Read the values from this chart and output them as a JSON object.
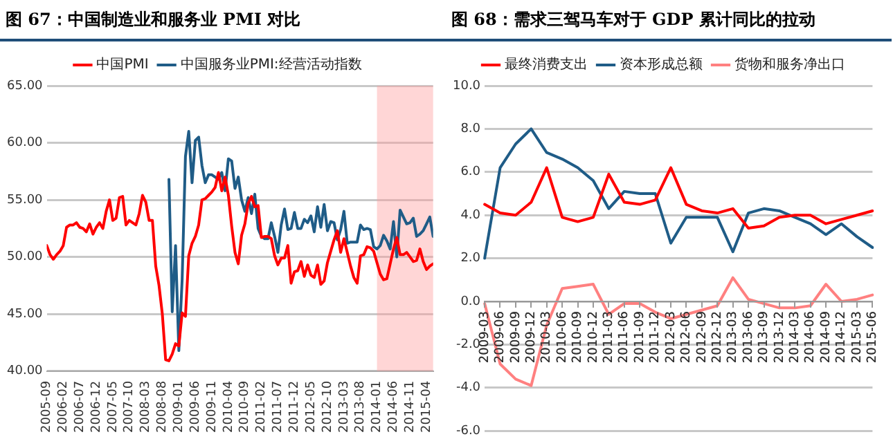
{
  "chart_data": [
    {
      "type": "line",
      "title": "图 67：中国制造业和服务业 PMI 对比",
      "x": [
        "2005-09",
        "2005-10",
        "2005-11",
        "2005-12",
        "2006-01",
        "2006-02",
        "2006-03",
        "2006-04",
        "2006-05",
        "2006-06",
        "2006-07",
        "2006-08",
        "2006-09",
        "2006-10",
        "2006-11",
        "2006-12",
        "2007-01",
        "2007-02",
        "2007-03",
        "2007-04",
        "2007-05",
        "2007-06",
        "2007-07",
        "2007-08",
        "2007-09",
        "2007-10",
        "2007-11",
        "2007-12",
        "2008-01",
        "2008-02",
        "2008-03",
        "2008-04",
        "2008-05",
        "2008-06",
        "2008-07",
        "2008-08",
        "2008-09",
        "2008-10",
        "2008-11",
        "2008-12",
        "2009-01",
        "2009-02",
        "2009-03",
        "2009-04",
        "2009-05",
        "2009-06",
        "2009-07",
        "2009-08",
        "2009-09",
        "2009-10",
        "2009-11",
        "2009-12",
        "2010-01",
        "2010-02",
        "2010-03",
        "2010-04",
        "2010-05",
        "2010-06",
        "2010-07",
        "2010-08",
        "2010-09",
        "2010-10",
        "2010-11",
        "2010-12",
        "2011-01",
        "2011-02",
        "2011-03",
        "2011-04",
        "2011-05",
        "2011-06",
        "2011-07",
        "2011-08",
        "2011-09",
        "2011-10",
        "2011-11",
        "2011-12",
        "2012-01",
        "2012-02",
        "2012-03",
        "2012-04",
        "2012-05",
        "2012-06",
        "2012-07",
        "2012-08",
        "2012-09",
        "2012-10",
        "2012-11",
        "2012-12",
        "2013-01",
        "2013-02",
        "2013-03",
        "2013-04",
        "2013-05",
        "2013-06",
        "2013-07",
        "2013-08",
        "2013-09",
        "2013-10",
        "2013-11",
        "2013-12",
        "2014-01",
        "2014-02",
        "2014-03",
        "2014-04",
        "2014-05",
        "2014-06",
        "2014-07",
        "2014-08",
        "2014-09",
        "2014-10",
        "2014-11",
        "2014-12",
        "2015-01",
        "2015-02",
        "2015-03",
        "2015-04",
        "2015-05",
        "2015-06"
      ],
      "series": [
        {
          "name": "中国PMI",
          "color": "#ff0000",
          "values": [
            51.0,
            50.2,
            49.8,
            50.2,
            50.5,
            51.0,
            52.6,
            52.8,
            52.8,
            53.0,
            52.6,
            52.5,
            52.2,
            52.9,
            52.0,
            52.6,
            53.0,
            52.5,
            54.0,
            55.0,
            53.2,
            53.4,
            55.2,
            55.3,
            52.8,
            53.2,
            53.0,
            52.8,
            53.8,
            55.4,
            54.8,
            53.2,
            53.2,
            49.2,
            47.5,
            45.0,
            41.0,
            40.9,
            41.5,
            42.4,
            42.2,
            45.1,
            44.8,
            50.1,
            51.2,
            51.8,
            52.8,
            55.0,
            55.1,
            55.4,
            55.7,
            56.1,
            57.4,
            55.8,
            57.0,
            55.4,
            52.7,
            50.4,
            49.4,
            51.9,
            52.9,
            54.7,
            55.3,
            54.4,
            54.5,
            51.7,
            51.8,
            51.8,
            51.6,
            50.1,
            49.3,
            49.9,
            49.9,
            51.0,
            47.7,
            48.7,
            48.8,
            49.6,
            48.3,
            49.3,
            48.4,
            48.2,
            49.3,
            47.6,
            47.9,
            49.5,
            50.5,
            51.5,
            52.3,
            50.4,
            51.6,
            50.4,
            49.2,
            48.2,
            47.7,
            50.1,
            50.2,
            50.9,
            50.8,
            50.5,
            49.5,
            48.5,
            48.0,
            48.1,
            49.4,
            50.7,
            51.7,
            50.2,
            50.2,
            50.4,
            50.0,
            49.6,
            49.7,
            50.7,
            49.6,
            48.9,
            49.2,
            49.4
          ]
        },
        {
          "name": "中国服务业PMI:经营活动指数",
          "color": "#1f5c87",
          "values": [
            null,
            null,
            null,
            null,
            null,
            null,
            null,
            null,
            null,
            null,
            null,
            null,
            null,
            null,
            null,
            null,
            null,
            null,
            null,
            null,
            null,
            null,
            null,
            null,
            null,
            null,
            null,
            null,
            null,
            null,
            null,
            null,
            null,
            null,
            null,
            null,
            null,
            56.8,
            45.2,
            51.0,
            41.8,
            48.0,
            58.8,
            61.0,
            56.5,
            60.2,
            60.5,
            58.0,
            56.5,
            57.2,
            57.2,
            57.0,
            56.8,
            57.4,
            55.8,
            58.6,
            58.4,
            56.0,
            57.0,
            55.0,
            54.0,
            55.2,
            53.8,
            55.5,
            52.5,
            51.8,
            51.6,
            51.6,
            53.0,
            51.8,
            50.4,
            52.8,
            54.2,
            52.4,
            52.5,
            53.9,
            52.5,
            52.5,
            53.3,
            53.0,
            53.6,
            52.2,
            54.4,
            52.6,
            54.6,
            52.3,
            53.1,
            53.0,
            51.5,
            52.4,
            54.0,
            51.2,
            51.3,
            51.3,
            51.3,
            52.8,
            52.4,
            52.5,
            52.4,
            50.9,
            50.7,
            51.0,
            51.9,
            51.4,
            50.7,
            53.1,
            50.0,
            54.1,
            53.5,
            52.9,
            53.0,
            53.4,
            51.8,
            52.0,
            52.3,
            52.9,
            53.5,
            51.8
          ]
        }
      ],
      "xlim": [
        "2005-09",
        "2015-06"
      ],
      "xticks": [
        "2005-09",
        "2006-02",
        "2006-07",
        "2006-12",
        "2007-05",
        "2007-10",
        "2008-03",
        "2008-08",
        "2009-01",
        "2009-06",
        "2009-11",
        "2010-04",
        "2010-09",
        "2011-02",
        "2011-07",
        "2011-12",
        "2012-05",
        "2012-10",
        "2013-03",
        "2013-08",
        "2014-01",
        "2014-06",
        "2014-11",
        "2015-04"
      ],
      "ylim": [
        40,
        65
      ],
      "yticks": [
        {
          "value": 40,
          "label": "40.00"
        },
        {
          "value": 45,
          "label": "45.00"
        },
        {
          "value": 50,
          "label": "50.00"
        },
        {
          "value": 55,
          "label": "55.00"
        },
        {
          "value": 60,
          "label": "60.00"
        },
        {
          "value": 65,
          "label": "65.00"
        }
      ],
      "bands": [
        {
          "axis": "x",
          "from": "2014-01",
          "to": "2015-06",
          "color": "#ff9999"
        }
      ],
      "grid": "y",
      "legend": "top",
      "marker": "none",
      "line_style": "solid"
    },
    {
      "type": "line",
      "title": "图 68：需求三驾马车对于 GDP 累计同比的拉动",
      "categories": [
        "2009-03",
        "2009-06",
        "2009-09",
        "2009-12",
        "2010-03",
        "2010-06",
        "2010-09",
        "2010-12",
        "2011-03",
        "2011-06",
        "2011-09",
        "2011-12",
        "2012-03",
        "2012-06",
        "2012-09",
        "2012-12",
        "2013-03",
        "2013-06",
        "2013-09",
        "2013-12",
        "2014-03",
        "2014-06",
        "2014-09",
        "2014-12",
        "2015-03",
        "2015-06"
      ],
      "series": [
        {
          "name": "最终消费支出",
          "color": "#ff0000",
          "values": [
            4.5,
            4.1,
            4.0,
            4.6,
            6.2,
            3.9,
            3.7,
            3.9,
            5.9,
            4.6,
            4.5,
            4.7,
            6.2,
            4.5,
            4.2,
            4.1,
            4.3,
            3.4,
            3.5,
            3.9,
            4.0,
            4.0,
            3.6,
            3.8,
            4.0,
            4.2
          ]
        },
        {
          "name": "资本形成总额",
          "color": "#1f5c87",
          "values": [
            2.0,
            6.2,
            7.3,
            8.0,
            6.9,
            6.6,
            6.2,
            5.6,
            4.3,
            5.1,
            5.0,
            5.0,
            2.7,
            3.9,
            3.9,
            3.9,
            2.3,
            4.1,
            4.3,
            4.2,
            3.9,
            3.6,
            3.1,
            3.6,
            3.0,
            2.5
          ]
        },
        {
          "name": "货物和服务净出口",
          "color": "#ff8080",
          "values": [
            -0.1,
            -2.9,
            -3.6,
            -3.9,
            -1.1,
            0.6,
            0.7,
            0.8,
            -0.6,
            -0.1,
            -0.1,
            -0.5,
            -0.8,
            -0.6,
            -0.4,
            -0.2,
            1.1,
            0.1,
            -0.1,
            -0.3,
            -0.3,
            -0.2,
            0.8,
            0.0,
            0.1,
            0.3
          ]
        }
      ],
      "ylim": [
        -6,
        10
      ],
      "yticks": [
        {
          "value": -6,
          "label": "-6.0"
        },
        {
          "value": -4,
          "label": "-4.0"
        },
        {
          "value": -2,
          "label": "-2.0"
        },
        {
          "value": 0,
          "label": "0.0"
        },
        {
          "value": 2,
          "label": "2.0"
        },
        {
          "value": 4,
          "label": "4.0"
        },
        {
          "value": 6,
          "label": "6.0"
        },
        {
          "value": 8,
          "label": "8.0"
        },
        {
          "value": 10,
          "label": "10.0"
        }
      ],
      "grid": "y",
      "legend": "top",
      "marker": "none",
      "line_style": "solid"
    }
  ]
}
